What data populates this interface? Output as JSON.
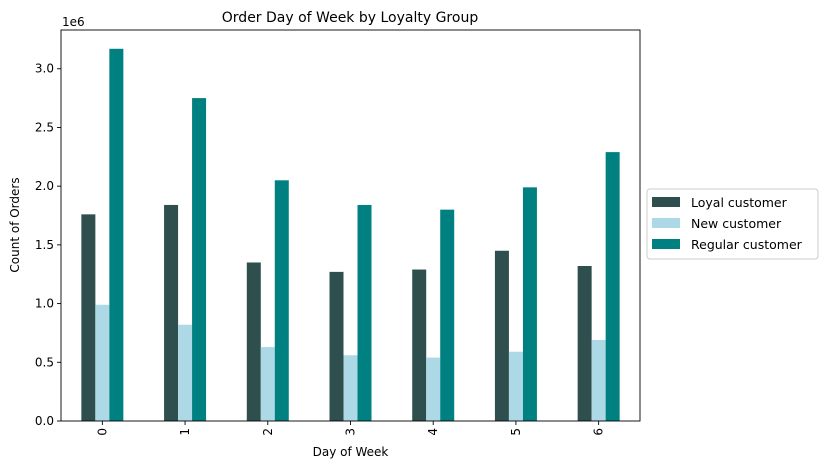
{
  "chart_data": {
    "type": "bar",
    "title": "Order Day of Week by Loyalty Group",
    "xlabel": "Day of Week",
    "ylabel": "Count of Orders",
    "offset_label": "1e6",
    "categories": [
      "0",
      "1",
      "2",
      "3",
      "4",
      "5",
      "6"
    ],
    "ylim": [
      0,
      3.33
    ],
    "yticks": [
      0.0,
      0.5,
      1.0,
      1.5,
      2.0,
      2.5,
      3.0
    ],
    "ytick_labels": [
      "0.0",
      "0.5",
      "1.0",
      "1.5",
      "2.0",
      "2.5",
      "3.0"
    ],
    "y_multiplier": 1000000,
    "grid": false,
    "legend_position": "center-right-outside",
    "series": [
      {
        "name": "Loyal customer",
        "color": "#2f4f4f",
        "values": [
          1.76,
          1.84,
          1.35,
          1.27,
          1.29,
          1.45,
          1.32
        ]
      },
      {
        "name": "New customer",
        "color": "#add8e6",
        "values": [
          0.99,
          0.82,
          0.63,
          0.56,
          0.54,
          0.59,
          0.69
        ]
      },
      {
        "name": "Regular customer",
        "color": "#008080",
        "values": [
          3.17,
          2.75,
          2.05,
          1.84,
          1.8,
          1.99,
          2.29
        ]
      }
    ]
  }
}
